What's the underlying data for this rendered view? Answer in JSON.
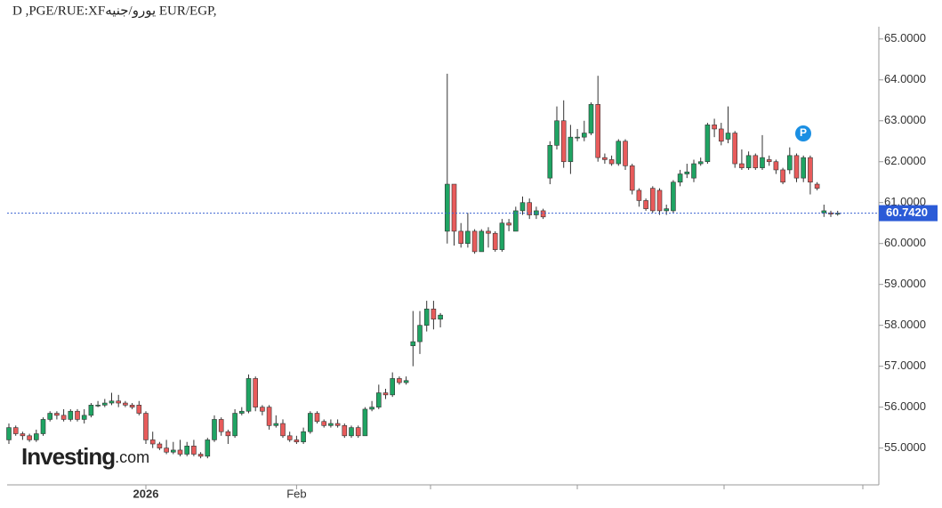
{
  "chart_data": {
    "type": "candlestick",
    "title": "D ,PGE/RUE:XFيورو/جنيه EUR/EGP,",
    "logo": {
      "name": "Investing",
      "suffix": ".com"
    },
    "annotation": "P",
    "up_color": "#1fa463",
    "down_color": "#e85b5b",
    "ylim": [
      54.1,
      65.3
    ],
    "yticks": [
      {
        "value": 55,
        "label": "55.0000"
      },
      {
        "value": 56,
        "label": "56.0000"
      },
      {
        "value": 57,
        "label": "57.0000"
      },
      {
        "value": 58,
        "label": "58.0000"
      },
      {
        "value": 59,
        "label": "59.0000"
      },
      {
        "value": 60,
        "label": "60.0000"
      },
      {
        "value": 61,
        "label": "61.0000"
      },
      {
        "value": 62,
        "label": "62.0000"
      },
      {
        "value": 63,
        "label": "63.0000"
      },
      {
        "value": 64,
        "label": "64.0000"
      },
      {
        "value": 65,
        "label": "65.0000"
      }
    ],
    "current_price": {
      "value": 60.742,
      "label": "60.7420"
    },
    "categories": [
      null,
      null,
      null,
      null,
      null,
      null,
      null,
      null,
      null,
      null,
      null,
      null,
      null,
      null,
      null,
      null,
      null,
      null,
      null,
      null,
      "2026",
      null,
      null,
      null,
      null,
      null,
      null,
      null,
      null,
      null,
      null,
      null,
      null,
      null,
      null,
      null,
      null,
      null,
      null,
      null,
      null,
      null,
      "Feb",
      null,
      null,
      null,
      null,
      null,
      null,
      null,
      null,
      null,
      null,
      null,
      null,
      null,
      null,
      null,
      null,
      null,
      null,
      null,
      null,
      null,
      null,
      null,
      null,
      null,
      null,
      null,
      null,
      null,
      null,
      null,
      null,
      null,
      null,
      null,
      null,
      null,
      null,
      null,
      null,
      null,
      null,
      null,
      null,
      null,
      null,
      null,
      null,
      null,
      null,
      null,
      null,
      null,
      null,
      null,
      null,
      null,
      null,
      null,
      null,
      null,
      null,
      null,
      null,
      null,
      null,
      null,
      null,
      null,
      null,
      null,
      null,
      null,
      null,
      null,
      null,
      null,
      null,
      null
    ],
    "open": [
      55.2,
      55.5,
      55.35,
      55.3,
      55.2,
      55.35,
      55.7,
      55.85,
      55.8,
      55.7,
      55.9,
      55.7,
      55.8,
      56.05,
      56.05,
      56.1,
      56.15,
      56.1,
      56.05,
      56.05,
      55.85,
      55.2,
      55.1,
      55.0,
      54.9,
      54.95,
      54.85,
      55.05,
      54.85,
      54.8,
      55.2,
      55.7,
      55.4,
      55.3,
      55.85,
      55.9,
      56.7,
      56.0,
      56.0,
      55.55,
      55.6,
      55.3,
      55.2,
      55.15,
      55.4,
      55.85,
      55.65,
      55.55,
      55.6,
      55.55,
      55.3,
      55.5,
      55.3,
      55.95,
      56.0,
      56.35,
      56.3,
      56.7,
      56.6,
      57.5,
      57.6,
      58.0,
      58.4,
      58.15,
      60.3,
      61.45,
      60.3,
      60.0,
      60.3,
      59.8,
      60.3,
      60.25,
      59.85,
      60.5,
      60.3,
      60.8,
      61.0,
      60.7,
      60.8,
      61.6,
      62.4,
      63.0,
      62.0,
      62.6,
      62.6,
      62.7,
      63.4,
      62.1,
      62.05,
      61.95,
      62.5,
      61.9,
      61.3,
      61.05,
      61.35,
      61.3,
      60.8,
      60.8,
      61.5,
      61.7,
      61.6,
      61.95,
      62.0,
      62.9,
      62.8,
      62.55,
      62.7,
      61.95,
      61.85,
      62.15,
      61.85,
      62.05,
      62.0,
      61.8,
      61.8,
      62.15,
      61.6,
      62.1,
      61.45,
      60.75,
      60.75,
      60.74
    ],
    "high": [
      55.6,
      55.55,
      55.4,
      55.35,
      55.45,
      55.75,
      55.9,
      55.9,
      55.95,
      55.95,
      55.95,
      55.95,
      56.1,
      56.15,
      56.2,
      56.35,
      56.3,
      56.15,
      56.1,
      56.15,
      55.9,
      55.4,
      55.15,
      55.2,
      55.15,
      55.2,
      55.15,
      55.2,
      54.9,
      55.25,
      55.8,
      55.75,
      55.45,
      55.95,
      56.0,
      56.8,
      56.75,
      56.05,
      56.05,
      55.8,
      55.7,
      55.4,
      55.3,
      55.5,
      55.9,
      55.9,
      55.7,
      55.7,
      55.7,
      55.6,
      55.55,
      55.55,
      56.0,
      56.15,
      56.55,
      56.45,
      56.85,
      56.75,
      56.75,
      58.35,
      58.35,
      58.6,
      58.6,
      58.3,
      64.15,
      61.45,
      60.5,
      60.75,
      60.35,
      60.35,
      60.4,
      60.3,
      60.6,
      60.6,
      60.9,
      61.15,
      61.1,
      60.9,
      60.85,
      62.5,
      63.35,
      63.5,
      62.9,
      62.8,
      63.0,
      63.45,
      64.1,
      62.2,
      62.15,
      62.55,
      62.55,
      61.95,
      61.35,
      61.1,
      61.4,
      61.35,
      60.95,
      61.55,
      61.8,
      61.95,
      62.05,
      62.1,
      62.95,
      63.05,
      62.95,
      63.35,
      62.75,
      62.3,
      62.25,
      62.2,
      62.65,
      62.15,
      62.05,
      61.85,
      62.35,
      62.2,
      62.15,
      62.15,
      61.5,
      60.95,
      60.8,
      60.8
    ],
    "low": [
      55.1,
      55.3,
      55.2,
      55.15,
      55.15,
      55.3,
      55.65,
      55.7,
      55.65,
      55.65,
      55.65,
      55.6,
      55.75,
      56.0,
      56.0,
      56.05,
      56.0,
      56.0,
      55.95,
      55.8,
      55.1,
      55.0,
      54.95,
      54.85,
      54.85,
      54.8,
      54.8,
      54.8,
      54.75,
      54.75,
      55.15,
      55.3,
      55.1,
      55.25,
      55.8,
      55.85,
      55.9,
      55.8,
      55.45,
      55.5,
      55.25,
      55.15,
      55.1,
      55.1,
      55.35,
      55.6,
      55.5,
      55.5,
      55.5,
      55.25,
      55.25,
      55.25,
      55.3,
      55.9,
      55.95,
      56.2,
      56.25,
      56.55,
      56.55,
      57.0,
      57.3,
      57.85,
      57.9,
      57.95,
      60.0,
      59.95,
      59.9,
      59.9,
      59.75,
      59.8,
      59.9,
      59.8,
      59.8,
      60.3,
      60.3,
      60.7,
      60.6,
      60.6,
      60.6,
      61.45,
      62.3,
      61.85,
      61.7,
      62.5,
      62.5,
      62.65,
      62.0,
      61.95,
      61.9,
      61.9,
      61.8,
      61.2,
      60.9,
      60.8,
      60.75,
      60.7,
      60.7,
      60.75,
      61.4,
      61.6,
      61.5,
      61.9,
      61.95,
      62.6,
      62.4,
      62.45,
      61.85,
      61.8,
      61.8,
      61.8,
      61.8,
      61.9,
      61.7,
      61.45,
      61.7,
      61.5,
      61.5,
      61.2,
      61.3,
      60.65,
      60.65,
      60.68
    ],
    "close": [
      55.5,
      55.35,
      55.3,
      55.2,
      55.35,
      55.7,
      55.85,
      55.8,
      55.7,
      55.9,
      55.7,
      55.8,
      56.05,
      56.05,
      56.1,
      56.15,
      56.1,
      56.05,
      56.0,
      55.85,
      55.2,
      55.1,
      55.0,
      54.9,
      54.95,
      54.85,
      55.05,
      54.85,
      54.8,
      55.2,
      55.7,
      55.4,
      55.3,
      55.85,
      55.9,
      56.7,
      56.0,
      55.9,
      55.55,
      55.6,
      55.3,
      55.2,
      55.15,
      55.4,
      55.85,
      55.65,
      55.55,
      55.6,
      55.55,
      55.3,
      55.5,
      55.3,
      55.95,
      56.0,
      56.35,
      56.3,
      56.7,
      56.6,
      56.65,
      57.6,
      58.0,
      58.4,
      58.15,
      58.25,
      61.45,
      60.3,
      60.0,
      60.3,
      59.8,
      60.3,
      60.25,
      59.85,
      60.5,
      60.45,
      60.8,
      61.0,
      60.7,
      60.8,
      60.65,
      62.4,
      63.0,
      62.0,
      62.6,
      62.6,
      62.7,
      63.4,
      62.1,
      62.05,
      61.95,
      62.5,
      61.9,
      61.3,
      61.05,
      60.85,
      60.8,
      60.8,
      60.85,
      61.5,
      61.7,
      61.75,
      61.95,
      62.0,
      62.9,
      62.8,
      62.5,
      62.7,
      61.95,
      61.85,
      62.15,
      61.85,
      62.1,
      62.0,
      61.8,
      61.5,
      62.15,
      61.6,
      62.1,
      61.5,
      61.35,
      60.8,
      60.72,
      60.74
    ]
  }
}
